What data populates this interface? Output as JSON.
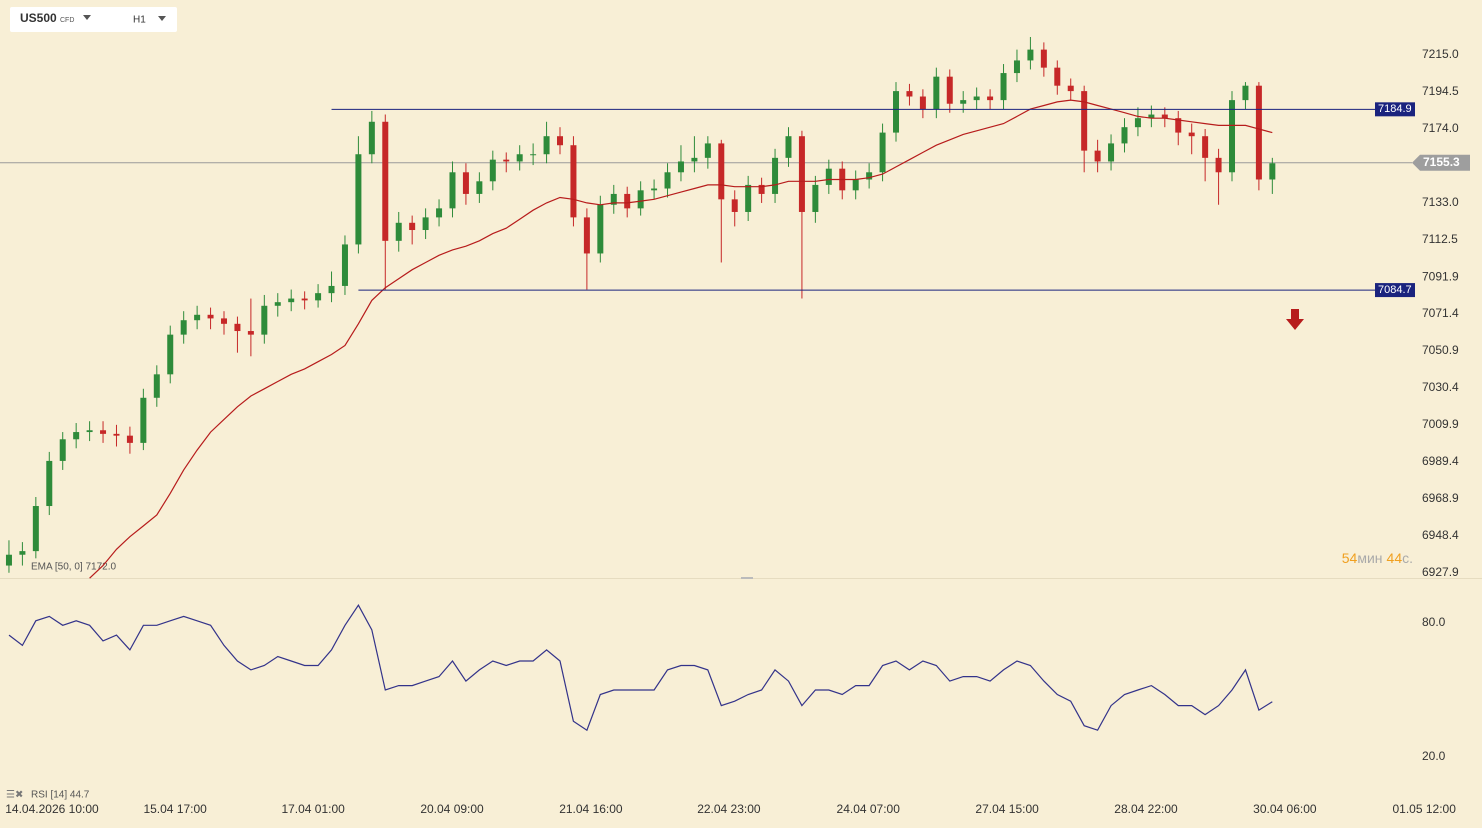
{
  "chart_data": {
    "type": "candlestick",
    "symbol": "US500",
    "instrument_type": "CFD",
    "timeframe": "H1",
    "x": [
      2,
      5,
      8,
      11,
      14,
      17,
      20,
      23,
      26,
      29,
      32,
      35,
      38,
      41,
      44,
      47,
      50,
      53,
      56,
      59,
      62,
      65,
      68,
      71,
      74,
      77,
      80,
      83,
      86,
      89,
      92,
      95,
      98,
      101,
      104,
      107,
      110,
      113,
      116,
      119,
      122,
      125,
      128,
      131,
      134,
      137,
      140,
      143,
      146,
      149,
      152,
      155,
      158,
      161,
      164,
      167,
      170,
      173,
      176,
      179,
      182,
      185,
      188,
      191,
      194,
      197,
      200,
      203,
      206,
      209,
      212,
      215,
      218,
      221,
      224,
      227,
      230,
      233,
      236,
      239,
      242,
      245,
      248,
      251,
      254,
      257,
      260,
      263,
      266,
      269,
      272,
      275,
      278,
      281,
      284
    ],
    "candles": [
      [
        6932,
        6946,
        6928,
        6938
      ],
      [
        6938,
        6945,
        6932,
        6940
      ],
      [
        6940,
        6970,
        6936,
        6965
      ],
      [
        6965,
        6995,
        6960,
        6990
      ],
      [
        6990,
        7006,
        6985,
        7002
      ],
      [
        7002,
        7011,
        6997,
        7006
      ],
      [
        7006,
        7012,
        7001,
        7007
      ],
      [
        7007,
        7012,
        7000,
        7005
      ],
      [
        7005,
        7010,
        6998,
        7004
      ],
      [
        7004,
        7009,
        6994,
        7000
      ],
      [
        7000,
        7030,
        6996,
        7025
      ],
      [
        7025,
        7043,
        7020,
        7038
      ],
      [
        7038,
        7065,
        7033,
        7060
      ],
      [
        7060,
        7073,
        7055,
        7068
      ],
      [
        7068,
        7076,
        7063,
        7071
      ],
      [
        7071,
        7075,
        7063,
        7069
      ],
      [
        7069,
        7073,
        7060,
        7066
      ],
      [
        7066,
        7070,
        7050,
        7062
      ],
      [
        7062,
        7080,
        7048,
        7060
      ],
      [
        7060,
        7082,
        7055,
        7076
      ],
      [
        7076,
        7083,
        7070,
        7078
      ],
      [
        7078,
        7085,
        7073,
        7080
      ],
      [
        7080,
        7084,
        7074,
        7079
      ],
      [
        7079,
        7088,
        7075,
        7083
      ],
      [
        7083,
        7095,
        7078,
        7087
      ],
      [
        7087,
        7115,
        7082,
        7110
      ],
      [
        7110,
        7170,
        7105,
        7160
      ],
      [
        7160,
        7184,
        7155,
        7178
      ],
      [
        7178,
        7182,
        7085,
        7112
      ],
      [
        7112,
        7128,
        7106,
        7122
      ],
      [
        7122,
        7126,
        7110,
        7118
      ],
      [
        7118,
        7130,
        7113,
        7125
      ],
      [
        7125,
        7135,
        7120,
        7130
      ],
      [
        7130,
        7156,
        7125,
        7150
      ],
      [
        7150,
        7155,
        7132,
        7138
      ],
      [
        7138,
        7150,
        7133,
        7145
      ],
      [
        7145,
        7162,
        7140,
        7157
      ],
      [
        7157,
        7161,
        7150,
        7156
      ],
      [
        7156,
        7165,
        7151,
        7160
      ],
      [
        7160,
        7166,
        7154,
        7160
      ],
      [
        7160,
        7178,
        7155,
        7170
      ],
      [
        7170,
        7175,
        7160,
        7165
      ],
      [
        7165,
        7170,
        7120,
        7125
      ],
      [
        7125,
        7130,
        7085,
        7105
      ],
      [
        7105,
        7137,
        7100,
        7132
      ],
      [
        7132,
        7143,
        7127,
        7138
      ],
      [
        7138,
        7142,
        7125,
        7130
      ],
      [
        7130,
        7145,
        7126,
        7140
      ],
      [
        7140,
        7146,
        7135,
        7141
      ],
      [
        7141,
        7155,
        7136,
        7150
      ],
      [
        7150,
        7165,
        7145,
        7156
      ],
      [
        7156,
        7170,
        7150,
        7158
      ],
      [
        7158,
        7170,
        7152,
        7166
      ],
      [
        7166,
        7168,
        7100,
        7135
      ],
      [
        7135,
        7140,
        7120,
        7128
      ],
      [
        7128,
        7148,
        7123,
        7143
      ],
      [
        7143,
        7147,
        7133,
        7138
      ],
      [
        7138,
        7163,
        7133,
        7158
      ],
      [
        7158,
        7175,
        7153,
        7170
      ],
      [
        7170,
        7173,
        7080,
        7128
      ],
      [
        7128,
        7148,
        7122,
        7143
      ],
      [
        7143,
        7157,
        7138,
        7152
      ],
      [
        7152,
        7156,
        7135,
        7140
      ],
      [
        7140,
        7151,
        7135,
        7146
      ],
      [
        7146,
        7155,
        7141,
        7150
      ],
      [
        7150,
        7177,
        7145,
        7172
      ],
      [
        7172,
        7200,
        7167,
        7195
      ],
      [
        7195,
        7199,
        7187,
        7192
      ],
      [
        7192,
        7196,
        7180,
        7185
      ],
      [
        7185,
        7208,
        7180,
        7203
      ],
      [
        7203,
        7207,
        7183,
        7188
      ],
      [
        7188,
        7195,
        7183,
        7190
      ],
      [
        7190,
        7197,
        7185,
        7192
      ],
      [
        7192,
        7196,
        7185,
        7190
      ],
      [
        7190,
        7210,
        7185,
        7205
      ],
      [
        7205,
        7218,
        7200,
        7212
      ],
      [
        7212,
        7225,
        7207,
        7218
      ],
      [
        7218,
        7222,
        7203,
        7208
      ],
      [
        7208,
        7212,
        7193,
        7198
      ],
      [
        7198,
        7202,
        7190,
        7195
      ],
      [
        7195,
        7198,
        7150,
        7162
      ],
      [
        7162,
        7168,
        7150,
        7156
      ],
      [
        7156,
        7171,
        7151,
        7166
      ],
      [
        7166,
        7180,
        7161,
        7175
      ],
      [
        7175,
        7186,
        7170,
        7180
      ],
      [
        7180,
        7187,
        7175,
        7182
      ],
      [
        7182,
        7186,
        7175,
        7180
      ],
      [
        7180,
        7184,
        7165,
        7172
      ],
      [
        7172,
        7177,
        7160,
        7170
      ],
      [
        7170,
        7174,
        7145,
        7158
      ],
      [
        7158,
        7163,
        7132,
        7150
      ],
      [
        7150,
        7195,
        7145,
        7190
      ],
      [
        7190,
        7200,
        7185,
        7198
      ],
      [
        7198,
        7200,
        7140,
        7146
      ],
      [
        7146,
        7158,
        7138,
        7155
      ]
    ],
    "up_color": "#2e8b3a",
    "down_color": "#c62828",
    "xlim": [
      0,
      330.8
    ],
    "xticks": [
      {
        "value": 11.6,
        "label": "14.04.2026 10:00"
      },
      {
        "value": 39.1,
        "label": "15.04 17:00"
      },
      {
        "value": 69.9,
        "label": "17.04 01:00"
      },
      {
        "value": 100.9,
        "label": "20.04 09:00"
      },
      {
        "value": 131.9,
        "label": "21.04 16:00"
      },
      {
        "value": 162.7,
        "label": "22.04 23:00"
      },
      {
        "value": 193.8,
        "label": "24.04 07:00"
      },
      {
        "value": 224.8,
        "label": "27.04 15:00"
      },
      {
        "value": 255.8,
        "label": "28.04 22:00"
      },
      {
        "value": 286.8,
        "label": "30.04 06:00"
      },
      {
        "value": 317.9,
        "label": "01.05 12:00"
      }
    ],
    "ylim": [
      6925.1,
      7245.5
    ],
    "yticks": [
      {
        "value": 7215,
        "label": "7215.0"
      },
      7194.5,
      {
        "value": 7174,
        "label": "7174.0"
      },
      {
        "value": 7133,
        "label": "7133.0"
      },
      7112.5,
      7091.9,
      7071.4,
      7050.9,
      7030.4,
      7009.9,
      6989.4,
      6968.9,
      6948.4,
      6927.9
    ],
    "ema": {
      "label": "EMA [50, 0] 7172.0",
      "color": "#b71c1c",
      "values": [
        null,
        null,
        null,
        null,
        null,
        null,
        6925,
        6932,
        6941,
        6948,
        6954,
        6960,
        6972,
        6985,
        6996,
        7006,
        7013,
        7020,
        7026,
        7030,
        7034,
        7038,
        7041,
        7045,
        7049,
        7054,
        7066,
        7079,
        7086,
        7091,
        7096,
        7100,
        7104,
        7107,
        7109,
        7112,
        7116,
        7119,
        7124,
        7129,
        7133,
        7136,
        7135,
        7133,
        7132,
        7133,
        7133,
        7134,
        7135,
        7137,
        7139,
        7141,
        7143,
        7143,
        7142,
        7142,
        7142,
        7143,
        7145,
        7145,
        7145,
        7146,
        7146,
        7146,
        7147,
        7149,
        7153,
        7157,
        7161,
        7165,
        7168,
        7171,
        7173,
        7175,
        7177,
        7181,
        7185,
        7187,
        7189,
        7190,
        7189,
        7187,
        7185,
        7183,
        7181,
        7180,
        7180,
        7179,
        7178,
        7177,
        7176,
        7176,
        7176,
        7174,
        7172.0
      ]
    },
    "levels": [
      {
        "value": 7184.9,
        "start": 74,
        "color": "#1a237e"
      },
      {
        "value": 7084.7,
        "start": 80,
        "color": "#1a237e"
      }
    ],
    "current_price": 7155.3,
    "countdown": [
      "54",
      "мин",
      "44",
      "с."
    ],
    "rsi": {
      "label": "RSI [14] 44.7",
      "color": "#33338a",
      "ylim": [
        5.2,
        99.3
      ],
      "yticks": [
        {
          "value": 80,
          "label": "80.0"
        },
        {
          "value": 20,
          "label": "20.0"
        }
      ],
      "values": [
        74.6,
        70,
        81,
        83,
        79,
        81,
        79,
        72,
        74.6,
        68,
        79,
        79,
        81,
        83,
        81,
        79,
        70,
        63,
        59,
        61,
        65,
        63,
        61,
        61,
        68,
        79,
        88,
        77,
        50,
        52,
        52,
        54,
        56,
        63,
        54,
        59,
        63,
        61,
        63,
        63,
        68,
        63,
        36,
        32,
        48,
        50,
        50,
        50,
        50,
        59,
        61,
        61,
        59,
        43,
        45,
        48,
        50,
        59,
        54,
        43,
        50,
        50,
        48,
        52,
        52,
        61,
        63,
        59,
        63,
        61,
        54,
        56,
        56,
        54,
        59,
        63,
        61,
        54,
        48,
        45,
        34,
        32,
        43,
        48,
        50,
        52,
        48,
        43,
        43,
        39,
        43,
        50,
        59,
        41,
        44.7
      ]
    }
  }
}
